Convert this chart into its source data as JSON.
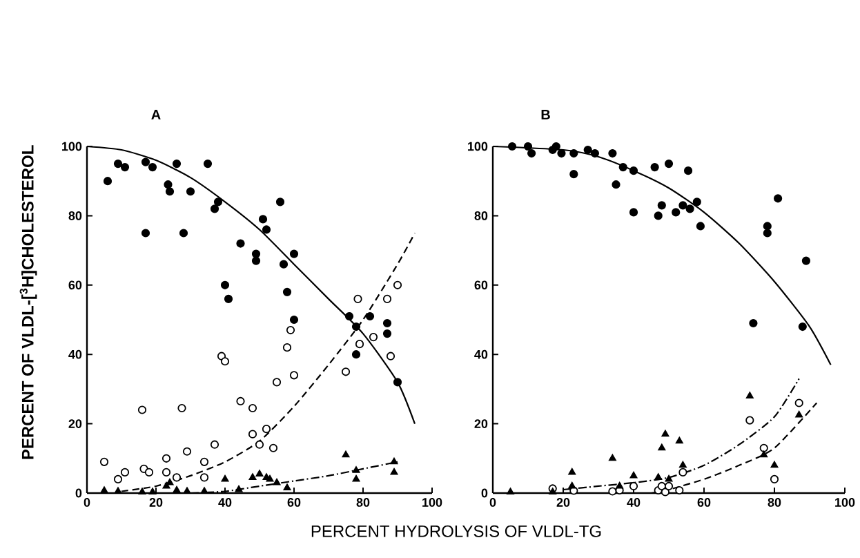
{
  "chart_data": [
    {
      "type": "scatter",
      "title": "A",
      "xlabel": "PERCENT HYDROLYSIS OF VLDL-TG",
      "ylabel": "PERCENT OF VLDL-[$^{3}$H]CHOLESTEROL",
      "xlim": [
        0,
        100
      ],
      "ylim": [
        0,
        100
      ],
      "xticks": [
        0,
        20,
        40,
        60,
        80,
        100
      ],
      "yticks": [
        0,
        20,
        40,
        60,
        80,
        100
      ],
      "series": [
        {
          "marker": "circle",
          "color": "#000000",
          "x": [
            6,
            9,
            11,
            17,
            19,
            23.5,
            24,
            26,
            30,
            28,
            17,
            35,
            38,
            37,
            40,
            41,
            44.5,
            49,
            49,
            51,
            52,
            56,
            57,
            60,
            58,
            60,
            76,
            78,
            78,
            82,
            87,
            87,
            90
          ],
          "values": [
            90,
            95,
            94,
            95.5,
            94,
            89,
            87,
            95,
            87,
            75,
            75,
            95,
            84,
            82,
            60,
            56,
            72,
            69,
            67,
            79,
            76,
            84,
            66,
            69,
            58,
            50,
            51,
            48,
            40,
            51,
            49,
            46,
            32
          ]
        },
        {
          "marker": "circle",
          "color": "#ffffff",
          "x": [
            5,
            9,
            11,
            16,
            16.5,
            18,
            23,
            23,
            26,
            27.5,
            29,
            34,
            34,
            37,
            39,
            40,
            44.5,
            48,
            48,
            50,
            52,
            54,
            55,
            58,
            59,
            60,
            75,
            78.5,
            79,
            83,
            87,
            88,
            90
          ],
          "values": [
            9,
            4,
            6,
            24,
            7,
            6,
            10,
            6,
            4.5,
            24.5,
            12,
            4.5,
            9,
            14,
            39.5,
            38,
            26.5,
            24.5,
            17,
            14,
            18.5,
            13,
            32,
            42,
            47,
            34,
            35,
            56,
            43,
            45,
            56,
            39.5,
            60
          ]
        },
        {
          "marker": "triangle",
          "color": "#000000",
          "x": [
            5,
            9,
            16,
            19,
            23,
            24,
            26,
            29,
            34,
            40,
            44,
            48,
            50,
            52,
            53,
            55,
            58,
            75,
            78,
            78,
            89,
            89
          ],
          "values": [
            0.7,
            0.5,
            0.3,
            0.3,
            2,
            3,
            0.8,
            0.5,
            0.5,
            4,
            1,
            4.5,
            5.5,
            4.5,
            4,
            3,
            1.5,
            11,
            6.5,
            4,
            9,
            6
          ]
        },
        {
          "type": "line",
          "marker": "none",
          "line_style": "solid",
          "color": "#000000",
          "x": [
            0,
            10,
            20,
            30,
            40,
            50,
            60,
            70,
            80,
            90,
            95
          ],
          "values": [
            100,
            99,
            96,
            91,
            84,
            76,
            66,
            56,
            46,
            32,
            20
          ]
        },
        {
          "type": "line",
          "marker": "none",
          "line_style": "dashed",
          "color": "#000000",
          "x": [
            10,
            20,
            30,
            40,
            50,
            60,
            70,
            80,
            90,
            95
          ],
          "values": [
            0.5,
            2,
            5,
            9,
            15,
            25,
            37,
            50,
            66,
            75
          ]
        },
        {
          "type": "line",
          "marker": "none",
          "line_style": "dashdot",
          "color": "#000000",
          "x": [
            30,
            40,
            50,
            60,
            70,
            80,
            90
          ],
          "values": [
            0,
            0.5,
            2,
            3.5,
            5,
            7,
            9
          ]
        }
      ]
    },
    {
      "type": "scatter",
      "title": "B",
      "xlim": [
        0,
        100
      ],
      "ylim": [
        0,
        100
      ],
      "xticks": [
        0,
        20,
        40,
        60,
        80,
        100
      ],
      "yticks": [
        0,
        20,
        40,
        60,
        80,
        100
      ],
      "series": [
        {
          "marker": "circle",
          "color": "#000000",
          "x": [
            5.5,
            10,
            11,
            17,
            18,
            19.5,
            23,
            23,
            27,
            29,
            34,
            35,
            37,
            40,
            40,
            46,
            47,
            48,
            50,
            52,
            54,
            55.5,
            56,
            58,
            59,
            74,
            78,
            78,
            81,
            88,
            89
          ],
          "values": [
            100,
            100,
            98,
            99,
            100,
            98,
            98,
            92,
            99,
            98,
            98,
            89,
            94,
            93,
            81,
            94,
            80,
            83,
            95,
            81,
            83,
            93,
            82,
            84,
            77,
            49,
            77,
            75,
            85,
            48,
            67
          ]
        },
        {
          "marker": "circle",
          "color": "#ffffff",
          "x": [
            17,
            23,
            34,
            36,
            40,
            47,
            48,
            49,
            50,
            53,
            54,
            73,
            77,
            80,
            87
          ],
          "values": [
            1.3,
            0.7,
            0.5,
            0.8,
            2,
            0.8,
            2,
            0.3,
            2,
            0.8,
            6,
            21,
            13,
            4,
            26
          ]
        },
        {
          "marker": "triangle",
          "color": "#000000",
          "x": [
            5,
            17,
            22.5,
            22.5,
            34,
            36,
            40,
            47,
            48,
            49,
            50,
            53,
            54,
            73,
            77,
            80,
            87
          ],
          "values": [
            0.3,
            0.3,
            6,
            2,
            10,
            2,
            5,
            4.5,
            13,
            17,
            4,
            15,
            8,
            28,
            11,
            8,
            22.5
          ]
        },
        {
          "type": "line",
          "marker": "none",
          "line_style": "solid",
          "color": "#000000",
          "x": [
            0,
            20,
            30,
            40,
            50,
            60,
            70,
            80,
            90,
            96
          ],
          "values": [
            100,
            99,
            97,
            93,
            88,
            81,
            72,
            61,
            48,
            37
          ]
        },
        {
          "type": "line",
          "marker": "none",
          "line_style": "dashdot",
          "color": "#000000",
          "x": [
            20,
            30,
            40,
            50,
            60,
            70,
            80,
            87
          ],
          "values": [
            1,
            2,
            3,
            4.5,
            8,
            14,
            22,
            33
          ]
        },
        {
          "type": "line",
          "marker": "none",
          "line_style": "dashed",
          "color": "#000000",
          "x": [
            45,
            50,
            60,
            70,
            80,
            92
          ],
          "values": [
            0,
            1,
            4,
            8,
            13,
            26
          ]
        }
      ]
    }
  ]
}
